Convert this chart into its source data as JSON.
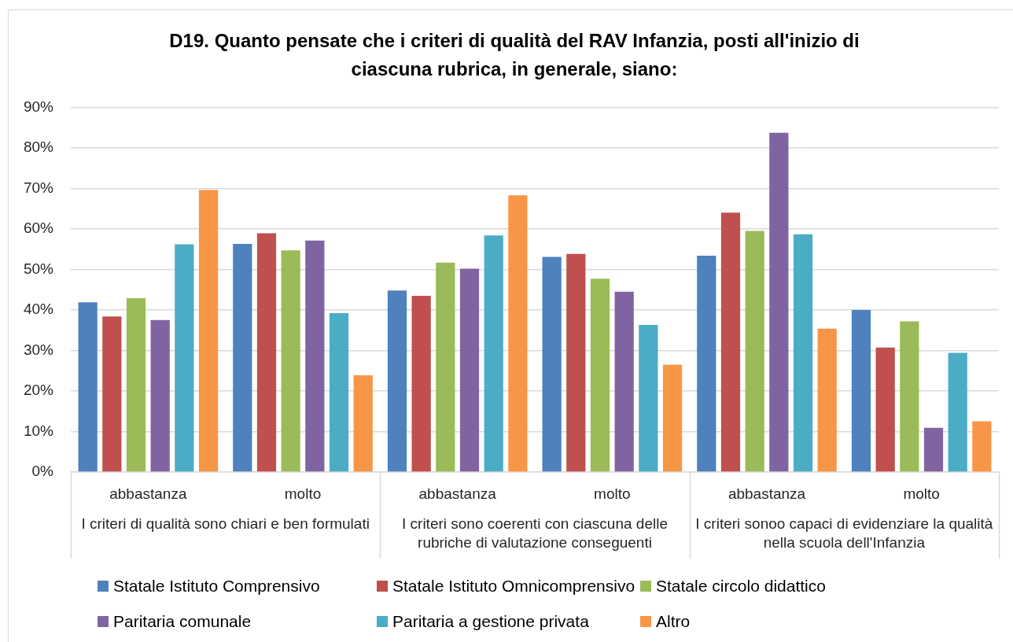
{
  "chart_data": {
    "type": "bar",
    "title": "D19. Quanto pensate che i criteri di qualità del RAV Infanzia, posti all'inizio di ciascuna rubrica, in generale, siano:",
    "categories": [
      "abbastanza",
      "molto",
      "abbastanza",
      "molto",
      "abbastanza",
      "molto"
    ],
    "series": [
      {
        "name": "Statale Istituto Comprensivo",
        "color": "#4f81bd",
        "values": [
          41.9,
          56.3,
          44.8,
          53.1,
          53.4,
          40.0
        ]
      },
      {
        "name": "Statale Istituto Omnicomprensivo",
        "color": "#c0504d",
        "values": [
          38.4,
          58.9,
          43.5,
          53.8,
          64.0,
          30.7
        ]
      },
      {
        "name": "Statale circolo didattico",
        "color": "#9bbb59",
        "values": [
          42.9,
          54.7,
          51.7,
          47.7,
          59.5,
          37.2
        ]
      },
      {
        "name": "Paritaria comunale",
        "color": "#8064a2",
        "values": [
          37.5,
          57.1,
          50.2,
          44.5,
          83.7,
          10.9
        ]
      },
      {
        "name": "Paritaria a gestione privata",
        "color": "#4bacc6",
        "values": [
          56.2,
          39.2,
          58.4,
          36.3,
          58.7,
          29.4
        ]
      },
      {
        "name": "Altro",
        "color": "#f79646",
        "values": [
          69.6,
          23.9,
          68.3,
          26.5,
          35.4,
          12.5
        ]
      }
    ],
    "ylim": [
      0,
      90
    ],
    "yticks": [
      {
        "value": 0,
        "label": "0%"
      },
      {
        "value": 10,
        "label": "10%"
      },
      {
        "value": 20,
        "label": "20%"
      },
      {
        "value": 30,
        "label": "30%"
      },
      {
        "value": 40,
        "label": "40%"
      },
      {
        "value": 50,
        "label": "50%"
      },
      {
        "value": 60,
        "label": "60%"
      },
      {
        "value": 70,
        "label": "70%"
      },
      {
        "value": 80,
        "label": "80%"
      },
      {
        "value": 90,
        "label": "90%"
      }
    ],
    "grid": "y",
    "legend": "bottom",
    "annotations": [
      "I criteri di qualità sono chiari e ben formulati",
      "I criteri sono coerenti con ciascuna delle rubriche di valutazione conseguenti",
      "I criteri sonoo capaci di evidenziare la qualità nella scuola dell'Infanzia"
    ]
  }
}
